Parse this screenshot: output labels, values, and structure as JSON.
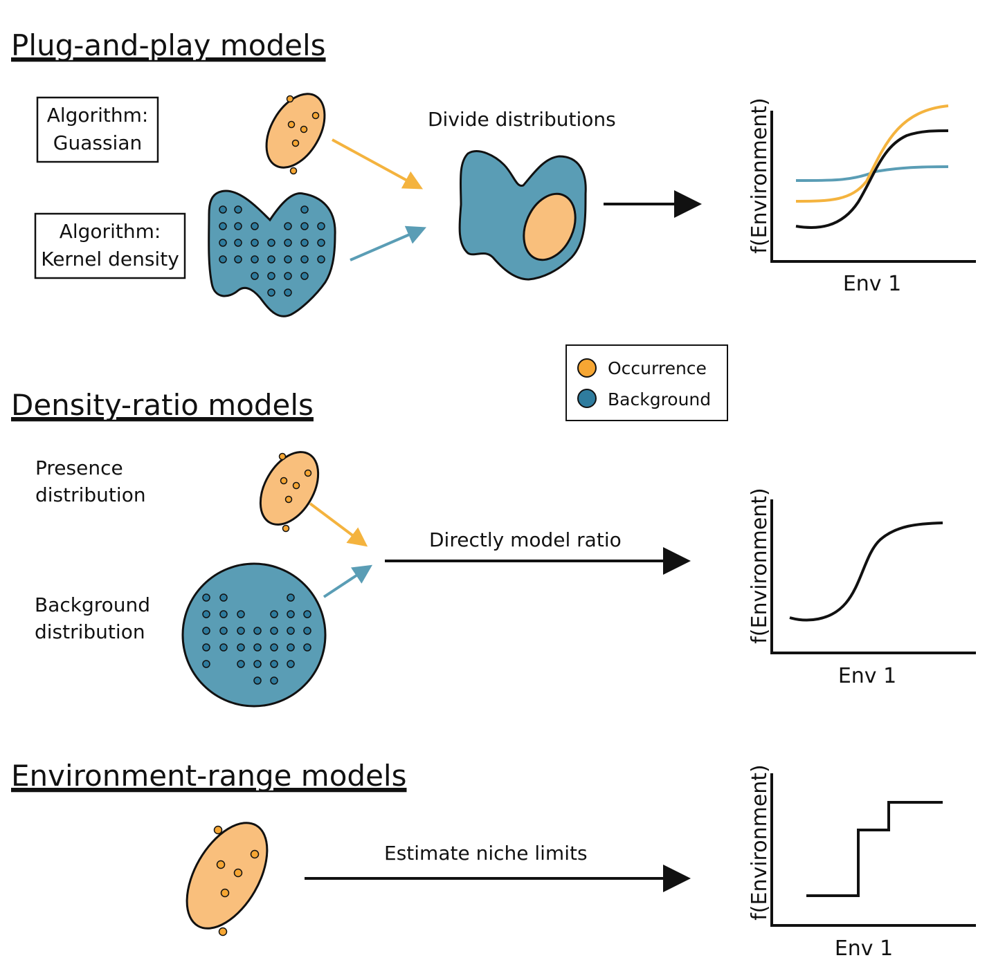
{
  "colors": {
    "occurrence_fill": "#F9BF7C",
    "occurrence_dot": "#F6A633",
    "background_fill": "#5A9DB5",
    "background_dot": "#2F7C9E",
    "arrow_orange": "#F4B33E",
    "arrow_blue": "#5A9DB5",
    "line_blue": "#5A9DB5",
    "line_orange": "#F4B33E",
    "ink": "#111111"
  },
  "sections": {
    "plug_and_play": {
      "heading": "Plug-and-play models",
      "algo1": {
        "line1": "Algorithm:",
        "line2": "Guassian"
      },
      "algo2": {
        "line1": "Algorithm:",
        "line2": "Kernel density"
      },
      "step_label": "Divide distributions",
      "plot": {
        "ylabel": "f(Environment)",
        "xlabel": "Env 1"
      }
    },
    "density_ratio": {
      "heading": "Density-ratio models",
      "presence": {
        "line1": "Presence",
        "line2": "distribution"
      },
      "background": {
        "line1": "Background",
        "line2": "distribution"
      },
      "step_label": "Directly model ratio",
      "plot": {
        "ylabel": "f(Environment)",
        "xlabel": "Env 1"
      }
    },
    "environment_range": {
      "heading": "Environment-range models",
      "step_label": "Estimate niche limits",
      "plot": {
        "ylabel": "f(Environment)",
        "xlabel": "Env 1"
      }
    }
  },
  "legend": {
    "occurrence": "Occurrence",
    "background": "Background"
  },
  "icons": {
    "occurrence_ellipse": "occurrence-cloud-icon",
    "background_blob": "background-blob-icon",
    "arrow": "arrow-right-icon"
  }
}
